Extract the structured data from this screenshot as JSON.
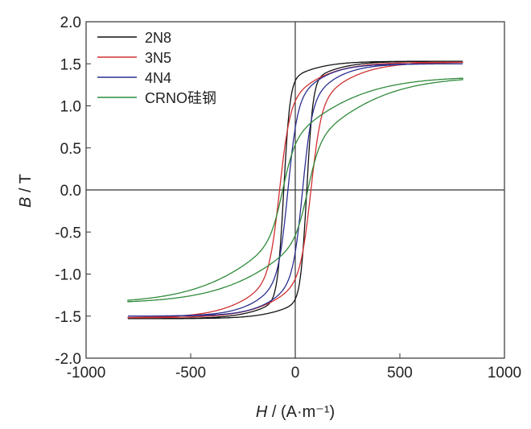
{
  "chart_data": {
    "type": "line",
    "title": "",
    "xlabel_italic": "H",
    "xlabel_rest": " / (A·m⁻¹)",
    "ylabel_italic": "B",
    "ylabel_rest": " / T",
    "xlim": [
      -1000,
      1000
    ],
    "ylim": [
      -2.0,
      2.0
    ],
    "xticks": [
      -1000,
      -500,
      0,
      500,
      1000
    ],
    "yticks": [
      -2.0,
      -1.5,
      -1.0,
      -0.5,
      0.0,
      0.5,
      1.0,
      1.5,
      2.0
    ],
    "ytick_labels": [
      "-2.0",
      "-1.5",
      "-1.0",
      "-0.5",
      "0.0",
      "0.5",
      "1.0",
      "1.5",
      "2.0"
    ],
    "xtick_labels": [
      "-1000",
      "-500",
      "0",
      "500",
      "1000"
    ],
    "legend_position": "top-left",
    "h_range": [
      -800,
      800
    ],
    "series": [
      {
        "name": "2N8",
        "color": "#111111",
        "coercivity": 55,
        "remanence": 1.3,
        "saturation_at_800": 1.53,
        "model": {
          "b1": 1.3,
          "a1": 30,
          "b2": 0.23,
          "a2": 200
        }
      },
      {
        "name": "3N5",
        "color": "#d0302f",
        "coercivity": 75,
        "remanence": 1.0,
        "saturation_at_800": 1.5,
        "model": {
          "b1": 1.0,
          "a1": 50,
          "b2": 0.52,
          "a2": 250
        }
      },
      {
        "name": "4N4",
        "color": "#2b2f8f",
        "coercivity": 35,
        "remanence": 0.85,
        "saturation_at_800": 1.5,
        "model": {
          "b1": 1.0,
          "a1": 45,
          "b2": 0.5,
          "a2": 200
        }
      },
      {
        "name": "CRNO硅钢",
        "color": "#2f8a3a",
        "coercivity": 60,
        "remanence": 0.55,
        "saturation_at_800": 1.31,
        "model": {
          "b1": 0.55,
          "a1": 60,
          "b2": 0.8,
          "a2": 400
        }
      }
    ]
  }
}
